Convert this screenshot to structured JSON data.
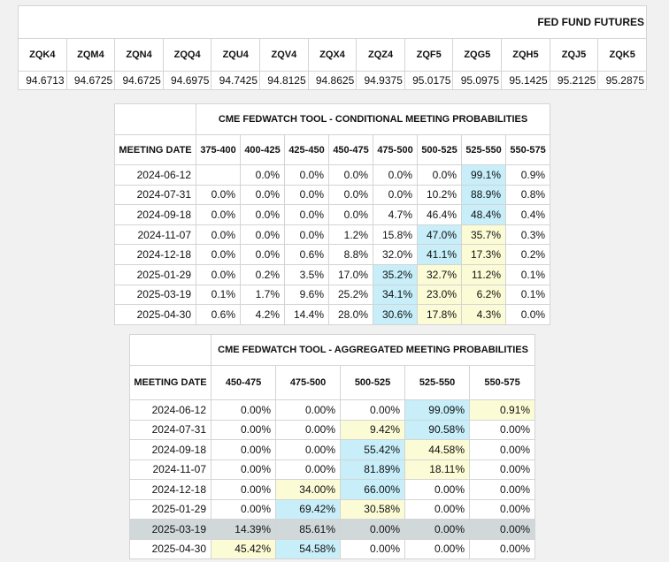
{
  "futures": {
    "title": "FED FUND FUTURES",
    "headers": [
      "ZQK4",
      "ZQM4",
      "ZQN4",
      "ZQQ4",
      "ZQU4",
      "ZQV4",
      "ZQX4",
      "ZQZ4",
      "ZQF5",
      "ZQG5",
      "ZQH5",
      "ZQJ5",
      "ZQK5"
    ],
    "values": [
      "94.6713",
      "94.6725",
      "94.6725",
      "94.6975",
      "94.7425",
      "94.8125",
      "94.8625",
      "94.9375",
      "95.0175",
      "95.0975",
      "95.1425",
      "95.2125",
      "95.2875"
    ]
  },
  "conditional": {
    "title": "CME FEDWATCH TOOL - CONDITIONAL MEETING PROBABILITIES",
    "date_header": "MEETING DATE",
    "headers": [
      "375-400",
      "400-425",
      "425-450",
      "450-475",
      "475-500",
      "500-525",
      "525-550",
      "550-575"
    ],
    "rows": [
      {
        "date": "2024-06-12",
        "values": [
          "",
          "0.0%",
          "0.0%",
          "0.0%",
          "0.0%",
          "0.0%",
          "99.1%",
          "0.9%"
        ],
        "hl": [
          "",
          "",
          "",
          "",
          "",
          "",
          "blue",
          ""
        ]
      },
      {
        "date": "2024-07-31",
        "values": [
          "0.0%",
          "0.0%",
          "0.0%",
          "0.0%",
          "0.0%",
          "10.2%",
          "88.9%",
          "0.8%"
        ],
        "hl": [
          "",
          "",
          "",
          "",
          "",
          "",
          "blue",
          ""
        ]
      },
      {
        "date": "2024-09-18",
        "values": [
          "0.0%",
          "0.0%",
          "0.0%",
          "0.0%",
          "4.7%",
          "46.4%",
          "48.4%",
          "0.4%"
        ],
        "hl": [
          "",
          "",
          "",
          "",
          "",
          "",
          "blue",
          ""
        ]
      },
      {
        "date": "2024-11-07",
        "values": [
          "0.0%",
          "0.0%",
          "0.0%",
          "1.2%",
          "15.8%",
          "47.0%",
          "35.7%",
          "0.3%"
        ],
        "hl": [
          "",
          "",
          "",
          "",
          "",
          "blue",
          "yellow",
          ""
        ]
      },
      {
        "date": "2024-12-18",
        "values": [
          "0.0%",
          "0.0%",
          "0.6%",
          "8.8%",
          "32.0%",
          "41.1%",
          "17.3%",
          "0.2%"
        ],
        "hl": [
          "",
          "",
          "",
          "",
          "",
          "blue",
          "yellow",
          ""
        ]
      },
      {
        "date": "2025-01-29",
        "values": [
          "0.0%",
          "0.2%",
          "3.5%",
          "17.0%",
          "35.2%",
          "32.7%",
          "11.2%",
          "0.1%"
        ],
        "hl": [
          "",
          "",
          "",
          "",
          "blue",
          "yellow",
          "yellow",
          ""
        ]
      },
      {
        "date": "2025-03-19",
        "values": [
          "0.1%",
          "1.7%",
          "9.6%",
          "25.2%",
          "34.1%",
          "23.0%",
          "6.2%",
          "0.1%"
        ],
        "hl": [
          "",
          "",
          "",
          "",
          "blue",
          "yellow",
          "yellow",
          ""
        ]
      },
      {
        "date": "2025-04-30",
        "values": [
          "0.6%",
          "4.2%",
          "14.4%",
          "28.0%",
          "30.6%",
          "17.8%",
          "4.3%",
          "0.0%"
        ],
        "hl": [
          "",
          "",
          "",
          "",
          "blue",
          "yellow",
          "yellow",
          ""
        ]
      }
    ]
  },
  "aggregated": {
    "title": "CME FEDWATCH TOOL - AGGREGATED MEETING PROBABILITIES",
    "date_header": "MEETING DATE",
    "headers": [
      "450-475",
      "475-500",
      "500-525",
      "525-550",
      "550-575"
    ],
    "rows": [
      {
        "date": "2024-06-12",
        "values": [
          "0.00%",
          "0.00%",
          "0.00%",
          "99.09%",
          "0.91%"
        ],
        "hl": [
          "",
          "",
          "",
          "blue",
          "yellow"
        ],
        "gray": false
      },
      {
        "date": "2024-07-31",
        "values": [
          "0.00%",
          "0.00%",
          "9.42%",
          "90.58%",
          "0.00%"
        ],
        "hl": [
          "",
          "",
          "yellow",
          "blue",
          ""
        ],
        "gray": false
      },
      {
        "date": "2024-09-18",
        "values": [
          "0.00%",
          "0.00%",
          "55.42%",
          "44.58%",
          "0.00%"
        ],
        "hl": [
          "",
          "",
          "blue",
          "yellow",
          ""
        ],
        "gray": false
      },
      {
        "date": "2024-11-07",
        "values": [
          "0.00%",
          "0.00%",
          "81.89%",
          "18.11%",
          "0.00%"
        ],
        "hl": [
          "",
          "",
          "blue",
          "yellow",
          ""
        ],
        "gray": false
      },
      {
        "date": "2024-12-18",
        "values": [
          "0.00%",
          "34.00%",
          "66.00%",
          "0.00%",
          "0.00%"
        ],
        "hl": [
          "",
          "yellow",
          "blue",
          "",
          ""
        ],
        "gray": false
      },
      {
        "date": "2025-01-29",
        "values": [
          "0.00%",
          "69.42%",
          "30.58%",
          "0.00%",
          "0.00%"
        ],
        "hl": [
          "",
          "blue",
          "yellow",
          "",
          ""
        ],
        "gray": false
      },
      {
        "date": "2025-03-19",
        "values": [
          "14.39%",
          "85.61%",
          "0.00%",
          "0.00%",
          "0.00%"
        ],
        "hl": [
          "",
          "",
          "",
          "",
          ""
        ],
        "gray": true
      },
      {
        "date": "2025-04-30",
        "values": [
          "45.42%",
          "54.58%",
          "0.00%",
          "0.00%",
          "0.00%"
        ],
        "hl": [
          "yellow",
          "blue",
          "",
          "",
          ""
        ],
        "gray": false
      }
    ]
  },
  "colors": {
    "highlight_blue": "#c7eef9",
    "highlight_yellow": "#fbfbd6",
    "row_gray": "#d1d8da"
  }
}
